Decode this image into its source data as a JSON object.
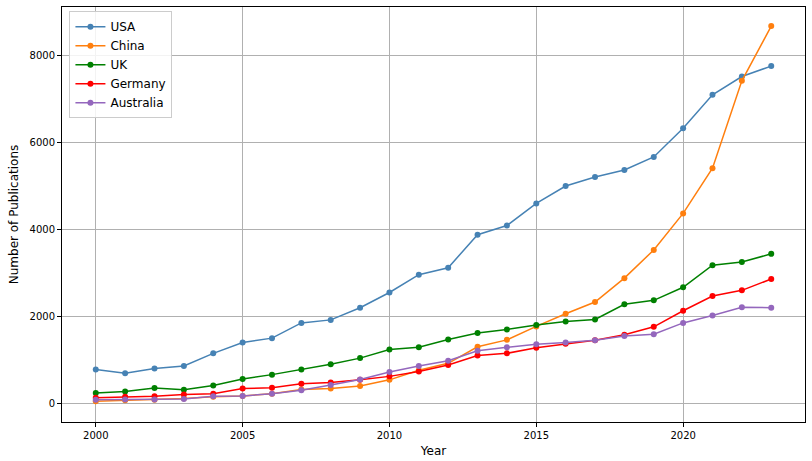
{
  "chart_data": {
    "type": "line",
    "x_label": "Year",
    "y_label": "Number of Publications",
    "x": [
      2000,
      2001,
      2002,
      2003,
      2004,
      2005,
      2006,
      2007,
      2008,
      2009,
      2010,
      2011,
      2012,
      2013,
      2014,
      2015,
      2016,
      2017,
      2018,
      2019,
      2020,
      2021,
      2022,
      2023
    ],
    "series": [
      {
        "name": "USA",
        "color": "#4682b4",
        "values": [
          780,
          690,
          800,
          860,
          1150,
          1400,
          1500,
          1850,
          1920,
          2200,
          2550,
          2960,
          3120,
          3880,
          4090,
          4600,
          5000,
          5210,
          5370,
          5670,
          6330,
          7100,
          7520,
          7760
        ]
      },
      {
        "name": "China",
        "color": "#ff7f0e",
        "values": [
          50,
          70,
          80,
          110,
          150,
          170,
          220,
          320,
          340,
          400,
          540,
          760,
          920,
          1300,
          1460,
          1770,
          2060,
          2330,
          2880,
          3530,
          4370,
          5410,
          7420,
          8680
        ]
      },
      {
        "name": "UK",
        "color": "#008000",
        "values": [
          240,
          270,
          350,
          310,
          410,
          560,
          660,
          780,
          900,
          1040,
          1240,
          1290,
          1470,
          1620,
          1700,
          1800,
          1880,
          1930,
          2280,
          2370,
          2670,
          3180,
          3250,
          3440
        ]
      },
      {
        "name": "Germany",
        "color": "#ff0000",
        "values": [
          130,
          150,
          160,
          200,
          220,
          340,
          360,
          450,
          480,
          540,
          620,
          730,
          880,
          1100,
          1150,
          1280,
          1370,
          1450,
          1580,
          1760,
          2130,
          2470,
          2600,
          2860
        ]
      },
      {
        "name": "Australia",
        "color": "#9467bd",
        "values": [
          80,
          90,
          90,
          100,
          160,
          170,
          220,
          300,
          420,
          550,
          720,
          860,
          980,
          1210,
          1290,
          1360,
          1400,
          1450,
          1550,
          1590,
          1850,
          2020,
          2210,
          2200
        ]
      }
    ],
    "xlim": [
      1998.85,
      2024.15
    ],
    "xticks": [
      2000,
      2005,
      2010,
      2015,
      2020
    ],
    "ylim": [
      -430,
      9120
    ],
    "yticks": [
      0,
      2000,
      4000,
      6000,
      8000
    ],
    "grid": true,
    "legend": "upper left",
    "marker": "circle",
    "line_style": "solid"
  }
}
